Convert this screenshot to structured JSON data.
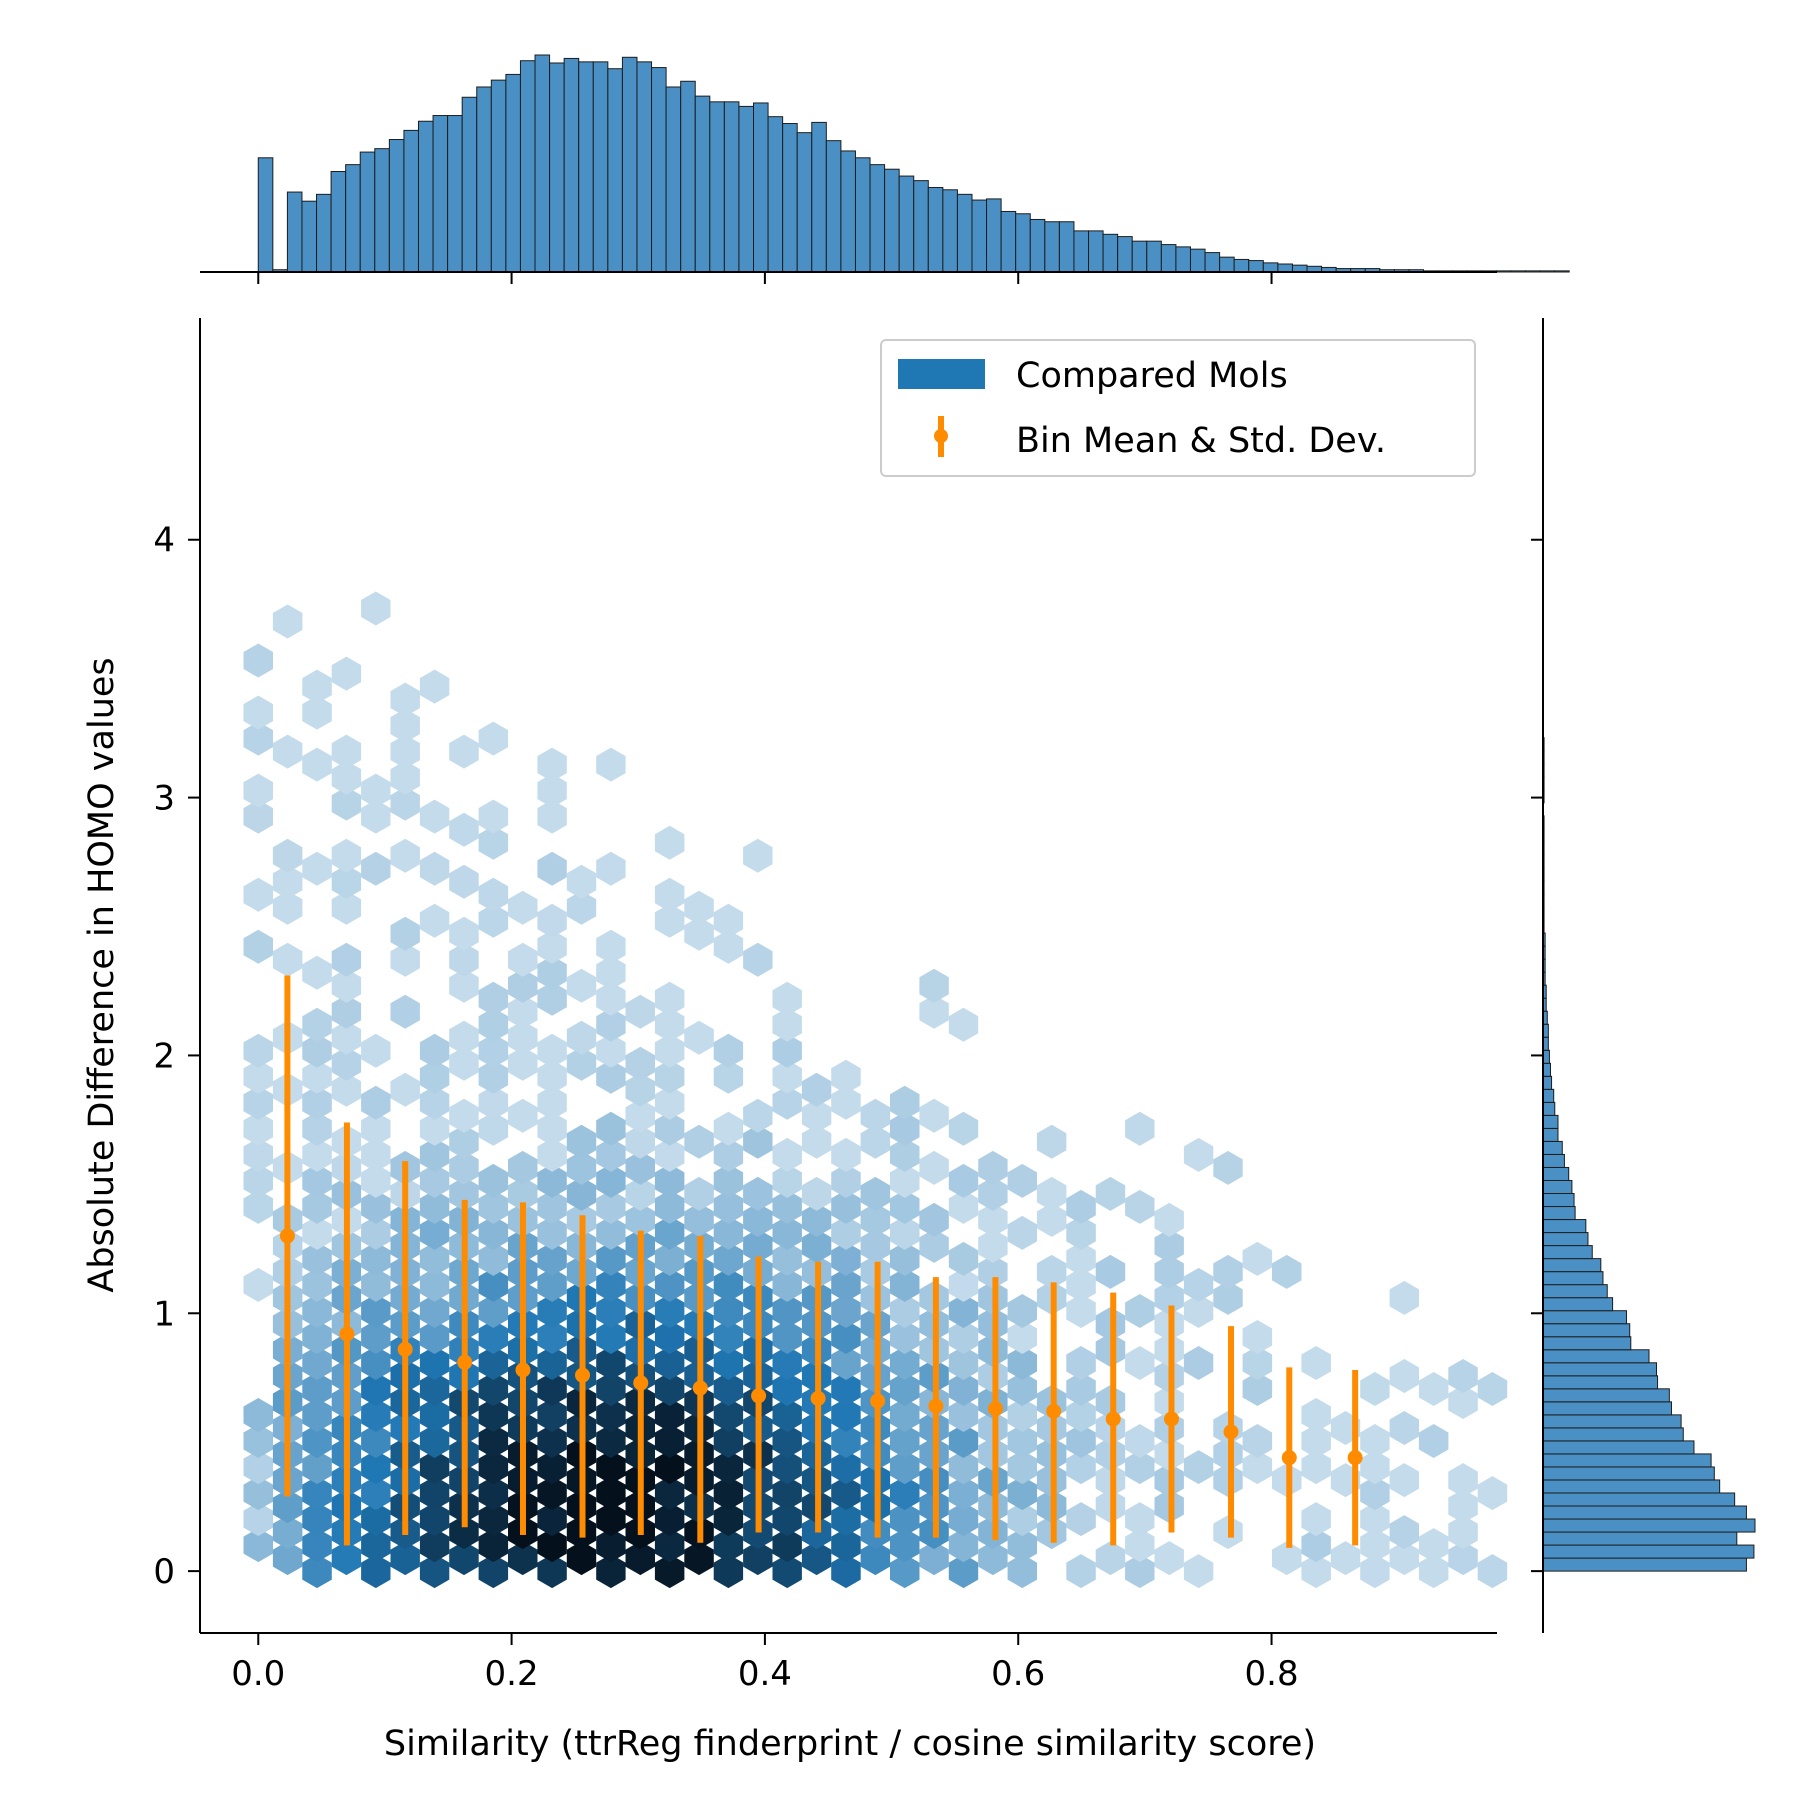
{
  "chart_data": {
    "type": "hexbin",
    "xlabel": "Similarity (ttrReg finderprint / cosine similarity score)",
    "ylabel": "Absolute Difference in HOMO values",
    "xlim": [
      -0.046,
      0.978
    ],
    "ylim": [
      -0.24,
      4.86
    ],
    "x_ticks": [
      0.0,
      0.2,
      0.4,
      0.6,
      0.8
    ],
    "x_tick_labels": [
      "0.0",
      "0.2",
      "0.4",
      "0.6",
      "0.8"
    ],
    "y_ticks": [
      0,
      1,
      2,
      3,
      4
    ],
    "y_tick_labels": [
      "0",
      "1",
      "2",
      "3",
      "4"
    ],
    "legend": {
      "placement": "top-right",
      "entries": [
        {
          "label": "Compared Mols",
          "color": "#1f77b4",
          "kind": "patch"
        },
        {
          "label": "Bin Mean & Std. Dev.",
          "color": "#ff8c00",
          "kind": "errorbar"
        }
      ]
    },
    "colors": {
      "hex_base": "#1f77b4",
      "errorbar": "#ff8c00",
      "hist": "#4a90c4"
    },
    "bin_stats": {
      "name": "Bin Mean & Std. Dev.",
      "x": [
        0.023,
        0.07,
        0.116,
        0.163,
        0.209,
        0.256,
        0.302,
        0.349,
        0.395,
        0.442,
        0.489,
        0.535,
        0.582,
        0.628,
        0.675,
        0.721,
        0.768,
        0.814,
        0.866
      ],
      "mean": [
        1.3,
        0.92,
        0.86,
        0.81,
        0.78,
        0.76,
        0.73,
        0.71,
        0.68,
        0.67,
        0.66,
        0.64,
        0.63,
        0.62,
        0.59,
        0.59,
        0.54,
        0.44,
        0.44
      ],
      "lower": [
        0.29,
        0.1,
        0.14,
        0.17,
        0.14,
        0.13,
        0.14,
        0.11,
        0.15,
        0.15,
        0.13,
        0.13,
        0.12,
        0.11,
        0.1,
        0.15,
        0.13,
        0.09,
        0.1
      ],
      "upper": [
        2.31,
        1.74,
        1.59,
        1.44,
        1.43,
        1.38,
        1.32,
        1.3,
        1.22,
        1.2,
        1.2,
        1.14,
        1.14,
        1.12,
        1.08,
        1.03,
        0.95,
        0.79,
        0.78
      ]
    },
    "x_marginal": {
      "type": "histogram",
      "bin_start": 0.0,
      "bin_width": 0.0115,
      "counts": [
        100,
        2,
        70,
        62,
        68,
        88,
        94,
        105,
        108,
        116,
        124,
        132,
        137,
        137,
        153,
        162,
        168,
        173,
        185,
        190,
        183,
        187,
        184,
        184,
        178,
        188,
        184,
        179,
        162,
        167,
        154,
        149,
        149,
        145,
        148,
        136,
        130,
        122,
        131,
        115,
        106,
        100,
        94,
        90,
        84,
        80,
        74,
        72,
        68,
        63,
        64,
        53,
        51,
        46,
        44,
        44,
        36,
        36,
        33,
        31,
        27,
        27,
        24,
        22,
        20,
        17,
        13,
        11,
        10,
        8,
        7,
        6,
        5,
        4,
        3,
        3,
        3,
        2,
        2,
        2,
        1,
        1,
        1,
        1,
        1,
        1,
        1,
        1,
        1,
        1,
        0,
        0,
        0
      ]
    },
    "y_marginal": {
      "type": "histogram",
      "bin_start": 0.0,
      "bin_width": 0.0505,
      "counts": [
        190,
        197,
        181,
        198,
        190,
        179,
        165,
        160,
        157,
        141,
        131,
        129,
        120,
        118,
        107,
        106,
        99,
        82,
        81,
        78,
        65,
        60,
        56,
        54,
        46,
        42,
        40,
        30,
        29,
        27,
        24,
        20,
        18,
        14,
        14,
        11,
        10,
        8,
        7,
        6,
        5,
        5,
        4,
        3,
        3,
        2,
        2,
        2,
        2,
        1,
        1,
        1,
        1,
        1,
        1,
        1,
        1,
        1,
        0,
        1,
        1,
        1,
        1,
        1
      ]
    }
  }
}
